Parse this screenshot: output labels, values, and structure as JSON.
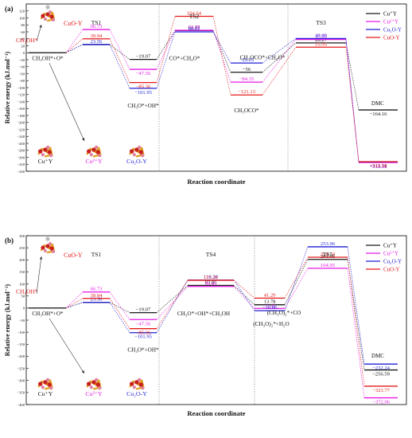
{
  "chart_data": [
    {
      "type": "line",
      "panel_label": "(a)",
      "xlabel": "Reaction  coordinate",
      "ylabel": "Relative energy (kJ.mol⁻¹)",
      "ylim": [
        -340,
        140
      ],
      "yticks": [
        120,
        100,
        80,
        60,
        40,
        20,
        0,
        -20,
        -40,
        -60,
        -80,
        -100,
        -120,
        -140,
        -160,
        -180,
        -200,
        -220,
        -240,
        -260,
        -280,
        -300,
        -320,
        -340
      ],
      "legend": [
        "Cu⁺Y",
        "Cu²⁺Y",
        "Cu₂O-Y",
        "CuO-Y"
      ],
      "legend_position": "top-right",
      "stage_labels": [
        "CH₃OH*+O*",
        "CH₃O*+OH*",
        "CO*+CH₃O*",
        "CH₃OCO*",
        "CH₃OCO*+CH₃O*",
        "DMC"
      ],
      "ts_labels": [
        "TS1",
        "TS2",
        "TS3"
      ],
      "structure_labels": [
        "CuO-Y",
        "CH₃OH*",
        "Cu⁺Y",
        "Cu²⁺Y",
        "Cu₂O-Y"
      ],
      "series": [
        {
          "name": "Cu⁺Y",
          "color": "#1a1a1a",
          "ts1": 23.56,
          "s2": -19.07,
          "ts2": 63.73,
          "s4": -56,
          "ts3": 28.27,
          "dmc": -164.16,
          "labels": {
            "s2": "−19.07",
            "ts2": "63.73",
            "s4": "−56",
            "ts3": "28.27",
            "dmc": "−164.16"
          }
        },
        {
          "name": "Cu²⁺Y",
          "color": "#e619e6",
          "ts1": 66.73,
          "s2": -47.56,
          "ts2": 64.45,
          "s4": -84.35,
          "ts3": 37.95,
          "dmc": -315.11,
          "labels": {
            "ts1": "66.73",
            "s2": "−47.56",
            "ts2": "64.45",
            "s4": "−84.35",
            "ts3": "37.95",
            "dmc": "−315.11"
          }
        },
        {
          "name": "Cu₂O-Y",
          "color": "#1f1fd6",
          "ts1": 23.56,
          "s2": -101.95,
          "ts2": 60.01,
          "s4": -29.35,
          "ts3": 40.9,
          "dmc": -313.18,
          "labels": {
            "ts1": "23.56",
            "s2": "−101.95",
            "ts2": "60.01",
            "s4": "−29.35",
            "ts3": "40.90",
            "dmc": "−313.18"
          }
        },
        {
          "name": "CuO-Y",
          "color": "#e61919",
          "ts1": 39.94,
          "s2": -85.36,
          "ts2": 104.64,
          "s4": -121.13,
          "ts3": 15.95,
          "dmc": -312.58,
          "labels": {
            "ts1": "39.94",
            "s2": "−85.36",
            "ts2": "104.64",
            "s4": "−121.13",
            "ts3": "15.95",
            "dmc": "−312.58"
          }
        }
      ]
    },
    {
      "type": "line",
      "panel_label": "(b)",
      "xlabel": "Reaction  coordinate",
      "ylabel": "Relative energy (kJ.mol⁻¹)",
      "ylim": [
        -400,
        300
      ],
      "yticks": [
        300,
        250,
        200,
        150,
        100,
        50,
        0,
        -50,
        -100,
        -150,
        -200,
        -250,
        -300,
        -350,
        -400
      ],
      "legend": [
        "Cu⁺Y",
        "Cu²⁺Y",
        "Cu₂O-Y",
        "CuO-Y"
      ],
      "legend_position": "top-right",
      "stage_labels": [
        "CH₃OH*+O*",
        "CH₃O*+OH*",
        "CH₃O*+OH*+CH₃OH",
        "(CH₃O)₂*+H₂O",
        "(CH₃O)₂*+CO",
        "DMC"
      ],
      "ts_labels": [
        "TS1",
        "TS4",
        "TS5"
      ],
      "structure_labels": [
        "CuO-Y",
        "CH₃OH*",
        "Cu⁺Y",
        "Cu²⁺Y",
        "Cu₂O-Y"
      ],
      "series": [
        {
          "name": "Cu⁺Y",
          "color": "#1a1a1a",
          "ts1": 23.56,
          "s2": -19.07,
          "ts4": 93.86,
          "s4": 13.78,
          "ts5": 201.68,
          "dmc": -256.59,
          "labels": {
            "s2": "−19.07",
            "ts4": "93.86",
            "s4": "13.78",
            "ts5": "201.68",
            "dmc": "−256.59"
          }
        },
        {
          "name": "Cu²⁺Y",
          "color": "#e619e6",
          "ts1": 66.73,
          "s2": -47.56,
          "ts4": 89.49,
          "s4": -1.41,
          "ts5": 164.95,
          "dmc": -372.06,
          "labels": {
            "ts1": "66.73",
            "s2": "−47.56",
            "ts4": "89.49",
            "s4": "−1.41",
            "ts5": "164.95",
            "dmc": "−372.06"
          }
        },
        {
          "name": "Cu₂O-Y",
          "color": "#1f1fd6",
          "ts1": 23.56,
          "s2": -101.95,
          "ts4": 116.38,
          "s4": -10.86,
          "ts5": 253.96,
          "dmc": -232.24,
          "labels": {
            "ts1": "23.56",
            "s2": "−101.95",
            "ts4": "116.38",
            "s4": "−10.86",
            "ts5": "253.96",
            "dmc": "−232.24"
          }
        },
        {
          "name": "CuO-Y",
          "color": "#e61919",
          "ts1": 39.94,
          "s2": -85.36,
          "ts4": 115.29,
          "s4": 41.29,
          "ts5": 210.74,
          "dmc": -323.77,
          "labels": {
            "ts1": "39.94",
            "s2": "−85.36",
            "ts4": "115.29",
            "s4": "41.29",
            "ts5": "210.74",
            "dmc": "−323.77"
          }
        }
      ]
    }
  ]
}
